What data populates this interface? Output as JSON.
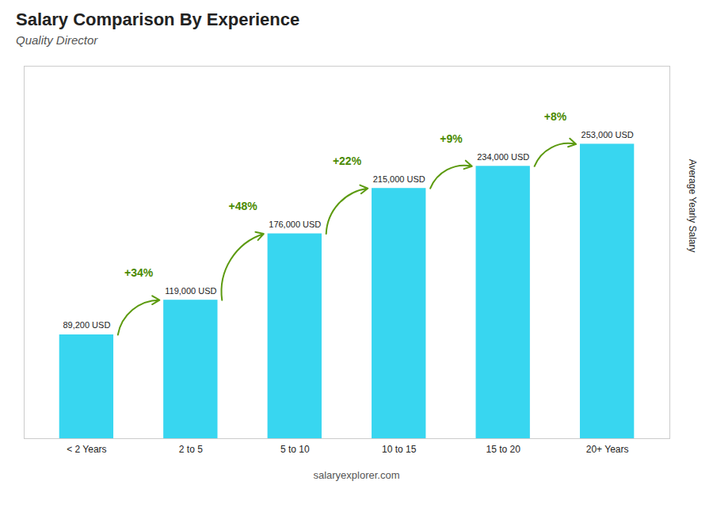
{
  "chart_data": {
    "type": "bar",
    "title": "Salary Comparison By Experience",
    "subtitle": "Quality Director",
    "ylabel": "Average Yearly Salary",
    "categories": [
      "< 2 Years",
      "2 to 5",
      "5 to 10",
      "10 to 15",
      "15 to 20",
      "20+ Years"
    ],
    "values": [
      89200,
      119000,
      176000,
      215000,
      234000,
      253000
    ],
    "value_labels": [
      "89,200 USD",
      "119,000 USD",
      "176,000 USD",
      "215,000 USD",
      "234,000 USD",
      "253,000 USD"
    ],
    "data_labels": true,
    "color": "#38d6f0",
    "ylim": [
      0,
      320000
    ],
    "tick_labels": "x",
    "annotations": [
      "+34%",
      "+48%",
      "+22%",
      "+9%",
      "+8%"
    ],
    "caption": "salaryexplorer.com"
  }
}
